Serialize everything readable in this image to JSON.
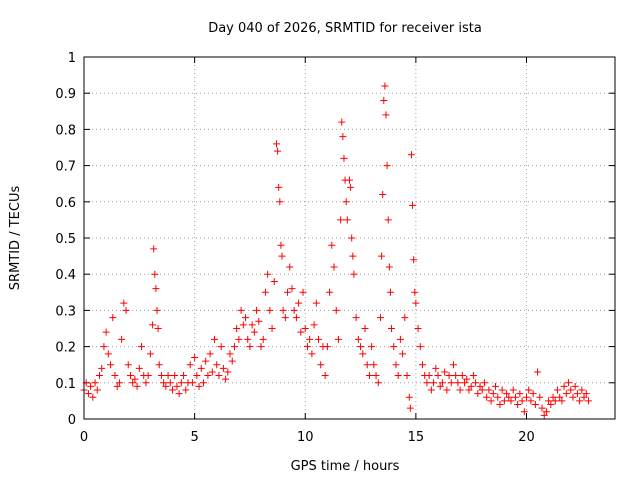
{
  "chart_data": {
    "type": "scatter",
    "title": "Day 040 of 2026, SRMTID for receiver ista",
    "xlabel": "GPS time / hours",
    "ylabel": "SRMTID / TECUs",
    "xlim": [
      0,
      24
    ],
    "ylim": [
      0,
      1
    ],
    "x_ticks": [
      0,
      5,
      10,
      15,
      20
    ],
    "x_tick_labels": [
      "0",
      "5",
      "10",
      "15",
      "20"
    ],
    "y_ticks": [
      0,
      0.1,
      0.2,
      0.3,
      0.4,
      0.5,
      0.6,
      0.7,
      0.8,
      0.9,
      1
    ],
    "y_tick_labels": [
      "0",
      "0.1",
      "0.2",
      "0.3",
      "0.4",
      "0.5",
      "0.6",
      "0.7",
      "0.8",
      "0.9",
      "1"
    ],
    "grid": true,
    "marker": "+",
    "color": "#ff0000",
    "series": [
      {
        "name": "SRMTID",
        "points": [
          [
            0.0,
            0.08
          ],
          [
            0.1,
            0.1
          ],
          [
            0.2,
            0.07
          ],
          [
            0.3,
            0.09
          ],
          [
            0.4,
            0.06
          ],
          [
            0.5,
            0.1
          ],
          [
            0.6,
            0.08
          ],
          [
            0.7,
            0.12
          ],
          [
            0.8,
            0.14
          ],
          [
            0.9,
            0.2
          ],
          [
            1.0,
            0.24
          ],
          [
            1.1,
            0.18
          ],
          [
            1.2,
            0.15
          ],
          [
            1.3,
            0.28
          ],
          [
            1.4,
            0.12
          ],
          [
            1.5,
            0.09
          ],
          [
            1.6,
            0.1
          ],
          [
            1.7,
            0.22
          ],
          [
            1.8,
            0.32
          ],
          [
            1.9,
            0.3
          ],
          [
            2.0,
            0.15
          ],
          [
            2.1,
            0.12
          ],
          [
            2.2,
            0.1
          ],
          [
            2.3,
            0.11
          ],
          [
            2.4,
            0.09
          ],
          [
            2.5,
            0.14
          ],
          [
            2.6,
            0.2
          ],
          [
            2.7,
            0.12
          ],
          [
            2.8,
            0.1
          ],
          [
            2.9,
            0.12
          ],
          [
            3.0,
            0.18
          ],
          [
            3.1,
            0.26
          ],
          [
            3.15,
            0.47
          ],
          [
            3.2,
            0.4
          ],
          [
            3.25,
            0.36
          ],
          [
            3.3,
            0.3
          ],
          [
            3.35,
            0.25
          ],
          [
            3.4,
            0.15
          ],
          [
            3.5,
            0.12
          ],
          [
            3.6,
            0.1
          ],
          [
            3.7,
            0.09
          ],
          [
            3.8,
            0.12
          ],
          [
            3.9,
            0.1
          ],
          [
            4.0,
            0.08
          ],
          [
            4.1,
            0.12
          ],
          [
            4.2,
            0.09
          ],
          [
            4.3,
            0.07
          ],
          [
            4.4,
            0.1
          ],
          [
            4.5,
            0.12
          ],
          [
            4.6,
            0.08
          ],
          [
            4.7,
            0.1
          ],
          [
            4.8,
            0.15
          ],
          [
            4.9,
            0.1
          ],
          [
            5.0,
            0.17
          ],
          [
            5.1,
            0.12
          ],
          [
            5.2,
            0.09
          ],
          [
            5.3,
            0.14
          ],
          [
            5.4,
            0.1
          ],
          [
            5.5,
            0.16
          ],
          [
            5.6,
            0.12
          ],
          [
            5.7,
            0.18
          ],
          [
            5.8,
            0.13
          ],
          [
            5.9,
            0.22
          ],
          [
            6.0,
            0.15
          ],
          [
            6.1,
            0.12
          ],
          [
            6.2,
            0.2
          ],
          [
            6.3,
            0.14
          ],
          [
            6.4,
            0.11
          ],
          [
            6.5,
            0.13
          ],
          [
            6.6,
            0.18
          ],
          [
            6.7,
            0.16
          ],
          [
            6.8,
            0.2
          ],
          [
            6.9,
            0.25
          ],
          [
            7.0,
            0.22
          ],
          [
            7.1,
            0.3
          ],
          [
            7.2,
            0.26
          ],
          [
            7.3,
            0.28
          ],
          [
            7.4,
            0.22
          ],
          [
            7.5,
            0.2
          ],
          [
            7.6,
            0.26
          ],
          [
            7.7,
            0.24
          ],
          [
            7.8,
            0.3
          ],
          [
            7.9,
            0.27
          ],
          [
            8.0,
            0.2
          ],
          [
            8.1,
            0.22
          ],
          [
            8.2,
            0.35
          ],
          [
            8.3,
            0.4
          ],
          [
            8.4,
            0.3
          ],
          [
            8.5,
            0.25
          ],
          [
            8.6,
            0.38
          ],
          [
            8.7,
            0.76
          ],
          [
            8.75,
            0.74
          ],
          [
            8.8,
            0.64
          ],
          [
            8.85,
            0.6
          ],
          [
            8.9,
            0.48
          ],
          [
            8.95,
            0.45
          ],
          [
            9.0,
            0.3
          ],
          [
            9.1,
            0.28
          ],
          [
            9.2,
            0.35
          ],
          [
            9.3,
            0.42
          ],
          [
            9.4,
            0.36
          ],
          [
            9.5,
            0.3
          ],
          [
            9.6,
            0.28
          ],
          [
            9.7,
            0.32
          ],
          [
            9.8,
            0.24
          ],
          [
            9.9,
            0.35
          ],
          [
            10.0,
            0.25
          ],
          [
            10.1,
            0.2
          ],
          [
            10.2,
            0.22
          ],
          [
            10.3,
            0.18
          ],
          [
            10.4,
            0.26
          ],
          [
            10.5,
            0.32
          ],
          [
            10.6,
            0.22
          ],
          [
            10.7,
            0.15
          ],
          [
            10.8,
            0.2
          ],
          [
            10.9,
            0.12
          ],
          [
            11.0,
            0.2
          ],
          [
            11.1,
            0.35
          ],
          [
            11.2,
            0.48
          ],
          [
            11.3,
            0.42
          ],
          [
            11.4,
            0.3
          ],
          [
            11.5,
            0.22
          ],
          [
            11.6,
            0.55
          ],
          [
            11.65,
            0.82
          ],
          [
            11.7,
            0.78
          ],
          [
            11.75,
            0.72
          ],
          [
            11.8,
            0.66
          ],
          [
            11.85,
            0.6
          ],
          [
            11.9,
            0.55
          ],
          [
            12.0,
            0.66
          ],
          [
            12.05,
            0.64
          ],
          [
            12.1,
            0.5
          ],
          [
            12.15,
            0.45
          ],
          [
            12.2,
            0.4
          ],
          [
            12.3,
            0.28
          ],
          [
            12.4,
            0.22
          ],
          [
            12.5,
            0.2
          ],
          [
            12.6,
            0.18
          ],
          [
            12.7,
            0.25
          ],
          [
            12.8,
            0.15
          ],
          [
            12.9,
            0.12
          ],
          [
            13.0,
            0.2
          ],
          [
            13.1,
            0.15
          ],
          [
            13.2,
            0.12
          ],
          [
            13.3,
            0.1
          ],
          [
            13.4,
            0.28
          ],
          [
            13.45,
            0.45
          ],
          [
            13.5,
            0.62
          ],
          [
            13.55,
            0.88
          ],
          [
            13.6,
            0.92
          ],
          [
            13.65,
            0.84
          ],
          [
            13.7,
            0.7
          ],
          [
            13.75,
            0.55
          ],
          [
            13.8,
            0.42
          ],
          [
            13.85,
            0.35
          ],
          [
            13.9,
            0.25
          ],
          [
            14.0,
            0.2
          ],
          [
            14.1,
            0.15
          ],
          [
            14.2,
            0.12
          ],
          [
            14.3,
            0.22
          ],
          [
            14.4,
            0.18
          ],
          [
            14.5,
            0.28
          ],
          [
            14.6,
            0.12
          ],
          [
            14.7,
            0.06
          ],
          [
            14.75,
            0.03
          ],
          [
            14.8,
            0.73
          ],
          [
            14.85,
            0.59
          ],
          [
            14.9,
            0.44
          ],
          [
            14.95,
            0.35
          ],
          [
            15.0,
            0.32
          ],
          [
            15.1,
            0.25
          ],
          [
            15.2,
            0.2
          ],
          [
            15.3,
            0.15
          ],
          [
            15.4,
            0.12
          ],
          [
            15.5,
            0.1
          ],
          [
            15.6,
            0.12
          ],
          [
            15.7,
            0.08
          ],
          [
            15.8,
            0.1
          ],
          [
            15.9,
            0.14
          ],
          [
            16.0,
            0.12
          ],
          [
            16.1,
            0.09
          ],
          [
            16.2,
            0.1
          ],
          [
            16.3,
            0.13
          ],
          [
            16.4,
            0.08
          ],
          [
            16.5,
            0.12
          ],
          [
            16.6,
            0.1
          ],
          [
            16.7,
            0.15
          ],
          [
            16.8,
            0.12
          ],
          [
            16.9,
            0.1
          ],
          [
            17.0,
            0.08
          ],
          [
            17.1,
            0.12
          ],
          [
            17.2,
            0.1
          ],
          [
            17.3,
            0.11
          ],
          [
            17.4,
            0.08
          ],
          [
            17.5,
            0.09
          ],
          [
            17.6,
            0.12
          ],
          [
            17.7,
            0.1
          ],
          [
            17.8,
            0.07
          ],
          [
            17.9,
            0.09
          ],
          [
            18.0,
            0.08
          ],
          [
            18.1,
            0.1
          ],
          [
            18.2,
            0.06
          ],
          [
            18.3,
            0.08
          ],
          [
            18.4,
            0.05
          ],
          [
            18.5,
            0.07
          ],
          [
            18.6,
            0.09
          ],
          [
            18.7,
            0.06
          ],
          [
            18.8,
            0.04
          ],
          [
            18.9,
            0.08
          ],
          [
            19.0,
            0.05
          ],
          [
            19.1,
            0.07
          ],
          [
            19.2,
            0.06
          ],
          [
            19.3,
            0.05
          ],
          [
            19.4,
            0.08
          ],
          [
            19.5,
            0.06
          ],
          [
            19.6,
            0.04
          ],
          [
            19.7,
            0.07
          ],
          [
            19.8,
            0.05
          ],
          [
            19.9,
            0.02
          ],
          [
            20.0,
            0.06
          ],
          [
            20.1,
            0.08
          ],
          [
            20.2,
            0.05
          ],
          [
            20.3,
            0.07
          ],
          [
            20.4,
            0.04
          ],
          [
            20.5,
            0.13
          ],
          [
            20.6,
            0.06
          ],
          [
            20.7,
            0.03
          ],
          [
            20.8,
            0.01
          ],
          [
            20.9,
            0.02
          ],
          [
            21.0,
            0.05
          ],
          [
            21.1,
            0.04
          ],
          [
            21.2,
            0.06
          ],
          [
            21.3,
            0.05
          ],
          [
            21.4,
            0.08
          ],
          [
            21.5,
            0.06
          ],
          [
            21.6,
            0.05
          ],
          [
            21.7,
            0.09
          ],
          [
            21.8,
            0.07
          ],
          [
            21.9,
            0.1
          ],
          [
            22.0,
            0.08
          ],
          [
            22.1,
            0.06
          ],
          [
            22.2,
            0.09
          ],
          [
            22.3,
            0.07
          ],
          [
            22.4,
            0.05
          ],
          [
            22.5,
            0.08
          ],
          [
            22.6,
            0.06
          ],
          [
            22.7,
            0.07
          ],
          [
            22.8,
            0.05
          ]
        ]
      }
    ]
  }
}
